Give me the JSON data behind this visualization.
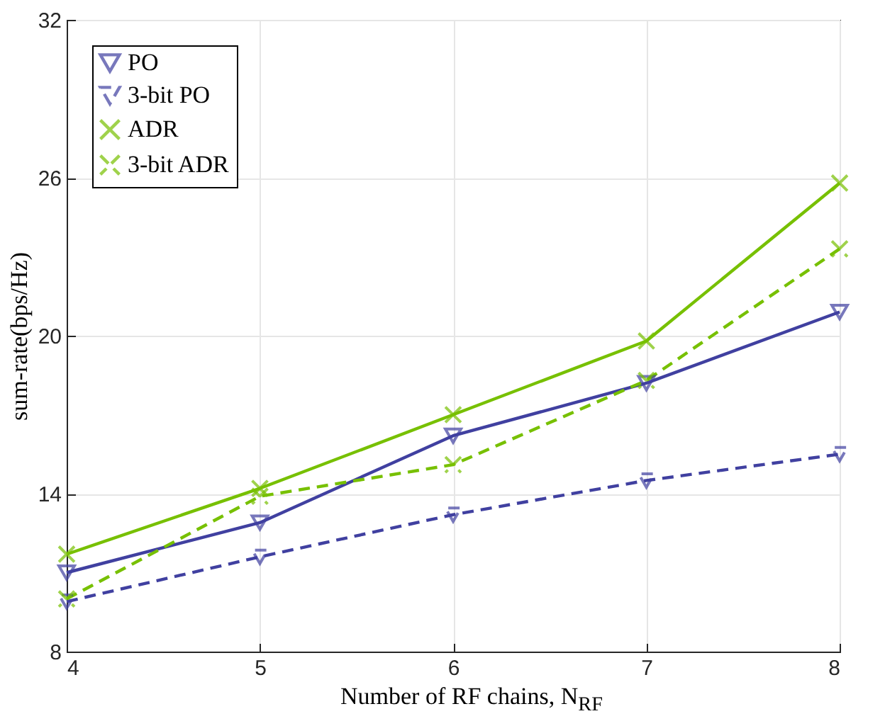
{
  "chart_data": {
    "type": "line",
    "xlabel": "Number of RF chains, N$_{RF}$",
    "ylabel": "sum-rate(bps/Hz)",
    "x": [
      4,
      5,
      6,
      7,
      8
    ],
    "xlim": [
      4,
      8
    ],
    "xticks": [
      4,
      5,
      6,
      7,
      8
    ],
    "ylim": [
      8,
      32
    ],
    "yticks": [
      8,
      14,
      20,
      26,
      32
    ],
    "grid": true,
    "legend": "top left",
    "series": [
      {
        "name": "PO",
        "color": "#4040a0",
        "marker": "triangle",
        "line_style": "solid",
        "values": [
          11.0,
          12.9,
          16.2,
          18.2,
          20.9
        ]
      },
      {
        "name": "3-bit PO",
        "color": "#4040a0",
        "marker": "triangle",
        "line_style": "dashed",
        "values": [
          9.9,
          11.6,
          13.2,
          14.5,
          15.5
        ]
      },
      {
        "name": "ADR",
        "color": "#77c000",
        "marker": "cross",
        "line_style": "solid",
        "values": [
          11.7,
          14.2,
          17.0,
          19.8,
          25.8
        ]
      },
      {
        "name": "3-bit ADR",
        "color": "#77c000",
        "marker": "cross",
        "line_style": "dashed",
        "values": [
          10.0,
          13.9,
          15.1,
          18.3,
          23.3
        ]
      }
    ]
  }
}
